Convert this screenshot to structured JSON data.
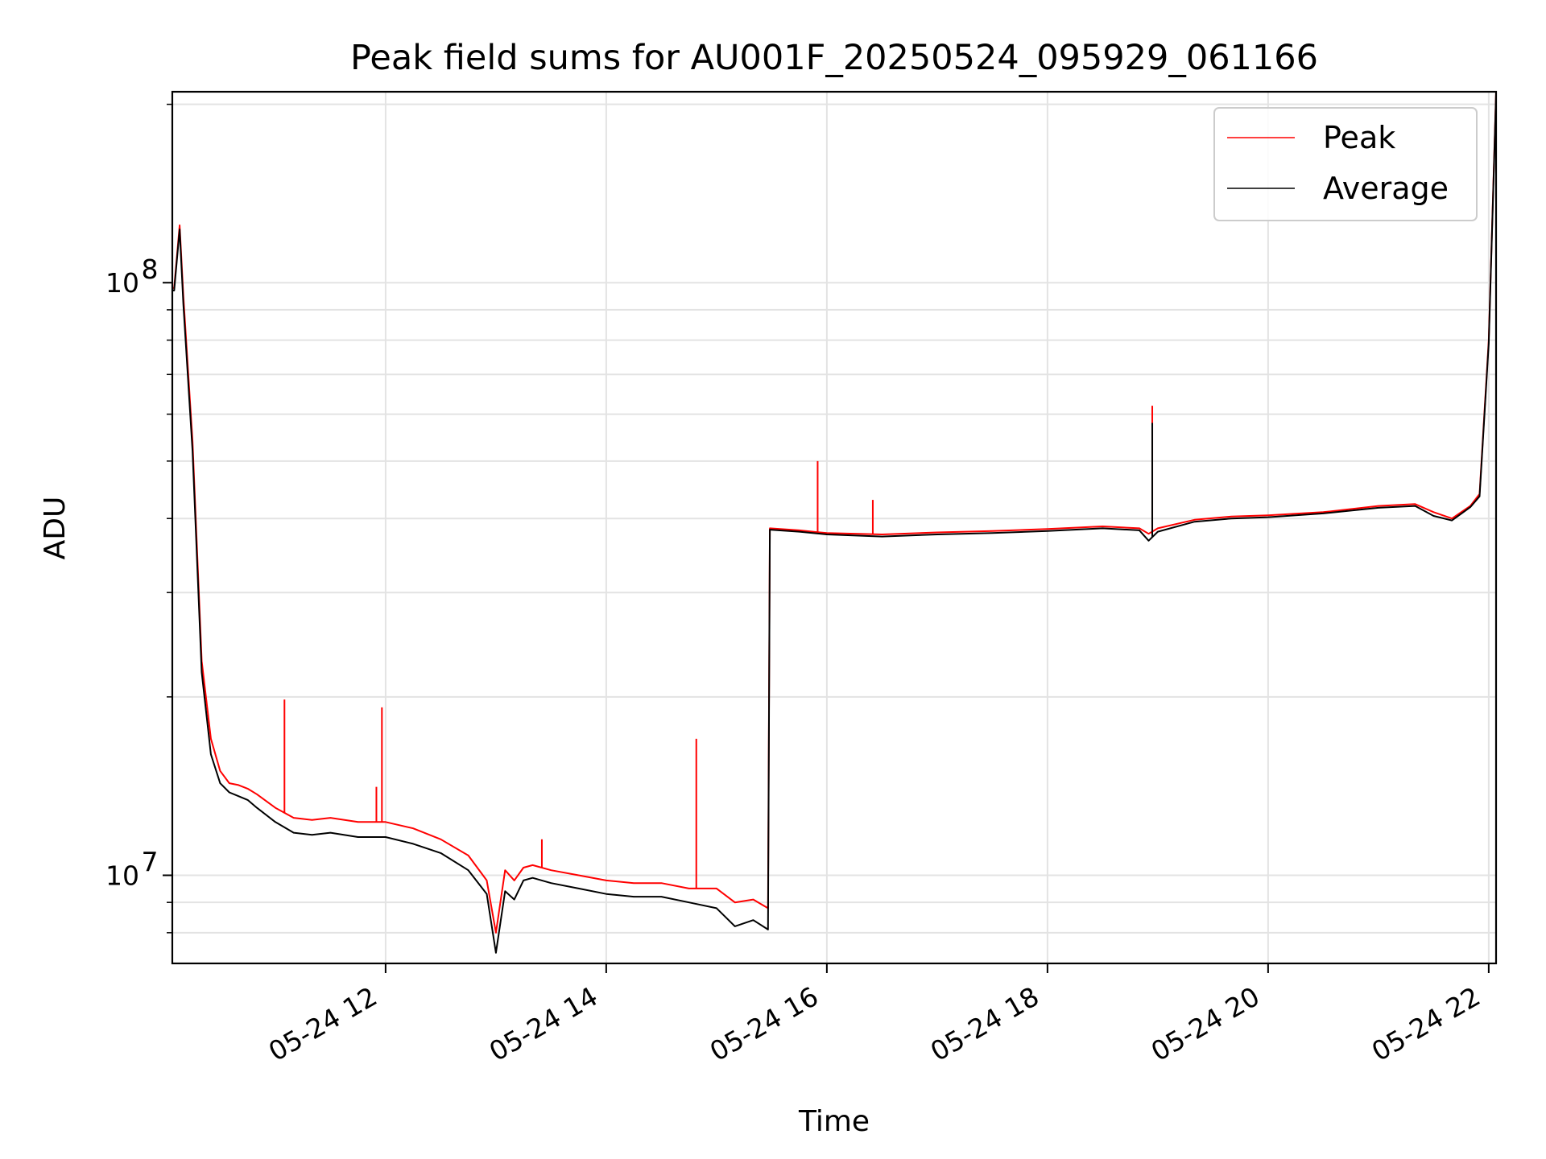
{
  "chart_data": {
    "type": "line",
    "title": "Peak field sums for AU001F_20250524_095929_061166",
    "xlabel": "Time",
    "ylabel": "ADU",
    "yscale": "log",
    "xlim": [
      "05-24 10:04",
      "05-24 22:04"
    ],
    "ylim": [
      7100000,
      210000000
    ],
    "grid": true,
    "legend_position": "top-right",
    "x_ticks": [
      "05-24 12",
      "05-24 14",
      "05-24 16",
      "05-24 18",
      "05-24 20",
      "05-24 22"
    ],
    "y_ticks": [
      {
        "label_base": "10",
        "label_exp": "7",
        "value": 10000000
      },
      {
        "label_base": "10",
        "label_exp": "8",
        "value": 100000000
      }
    ],
    "x": [
      "05-24 10:04",
      "05-24 10:05",
      "05-24 10:08",
      "05-24 10:10",
      "05-24 10:15",
      "05-24 10:20",
      "05-24 10:25",
      "05-24 10:30",
      "05-24 10:35",
      "05-24 10:40",
      "05-24 10:45",
      "05-24 10:50",
      "05-24 11:00",
      "05-24 11:10",
      "05-24 11:20",
      "05-24 11:30",
      "05-24 11:45",
      "05-24 12:00",
      "05-24 12:15",
      "05-24 12:30",
      "05-24 12:45",
      "05-24 12:55",
      "05-24 13:00",
      "05-24 13:05",
      "05-24 13:10",
      "05-24 13:15",
      "05-24 13:20",
      "05-24 13:30",
      "05-24 13:45",
      "05-24 14:00",
      "05-24 14:15",
      "05-24 14:30",
      "05-24 14:45",
      "05-24 15:00",
      "05-24 15:10",
      "05-24 15:20",
      "05-24 15:28",
      "05-24 15:29",
      "05-24 15:45",
      "05-24 16:00",
      "05-24 16:30",
      "05-24 17:00",
      "05-24 17:30",
      "05-24 18:00",
      "05-24 18:30",
      "05-24 18:50",
      "05-24 18:55",
      "05-24 19:00",
      "05-24 19:20",
      "05-24 19:40",
      "05-24 20:00",
      "05-24 20:30",
      "05-24 21:00",
      "05-24 21:20",
      "05-24 21:30",
      "05-24 21:40",
      "05-24 21:50",
      "05-24 21:55",
      "05-24 22:00",
      "05-24 22:04"
    ],
    "series": [
      {
        "name": "Peak",
        "color": "#ff0000",
        "values": [
          98000000,
          98000000,
          125000000,
          95000000,
          54000000,
          23000000,
          17000000,
          15000000,
          14300000,
          14200000,
          14000000,
          13700000,
          13000000,
          12500000,
          12400000,
          12500000,
          12300000,
          12300000,
          12000000,
          11500000,
          10800000,
          9800000,
          8000000,
          10200000,
          9800000,
          10300000,
          10400000,
          10200000,
          10000000,
          9800000,
          9700000,
          9700000,
          9500000,
          9500000,
          9000000,
          9100000,
          8800000,
          38500000,
          38200000,
          37800000,
          37600000,
          37900000,
          38100000,
          38400000,
          38800000,
          38500000,
          37700000,
          38500000,
          39800000,
          40300000,
          40500000,
          41000000,
          42000000,
          42300000,
          41000000,
          40000000,
          42000000,
          44000000,
          80000000,
          210000000
        ]
      },
      {
        "name": "Average",
        "color": "#000000",
        "values": [
          97000000,
          97000000,
          123000000,
          92000000,
          52000000,
          22000000,
          16000000,
          14300000,
          13800000,
          13600000,
          13400000,
          13000000,
          12300000,
          11800000,
          11700000,
          11800000,
          11600000,
          11600000,
          11300000,
          10900000,
          10200000,
          9300000,
          7400000,
          9400000,
          9100000,
          9800000,
          9900000,
          9700000,
          9500000,
          9300000,
          9200000,
          9200000,
          9000000,
          8800000,
          8200000,
          8400000,
          8100000,
          38300000,
          38000000,
          37600000,
          37300000,
          37600000,
          37800000,
          38100000,
          38500000,
          38200000,
          36700000,
          38000000,
          39500000,
          40000000,
          40200000,
          40800000,
          41700000,
          42000000,
          40400000,
          39700000,
          41800000,
          43600000,
          79000000,
          208000000
        ]
      }
    ],
    "spikes": [
      {
        "series": "Peak",
        "x": "05-24 11:05",
        "y": 19800000
      },
      {
        "series": "Peak",
        "x": "05-24 11:58",
        "y": 19200000
      },
      {
        "series": "Peak",
        "x": "05-24 11:55",
        "y": 14100000
      },
      {
        "series": "Peak",
        "x": "05-24 13:25",
        "y": 11500000
      },
      {
        "series": "Peak",
        "x": "05-24 14:49",
        "y": 17000000
      },
      {
        "series": "Peak",
        "x": "05-24 15:55",
        "y": 50000000
      },
      {
        "series": "Peak",
        "x": "05-24 16:25",
        "y": 43000000
      },
      {
        "series": "Peak",
        "x": "05-24 18:57",
        "y": 62000000
      },
      {
        "series": "Average",
        "x": "05-24 18:57",
        "y": 58000000
      }
    ]
  }
}
